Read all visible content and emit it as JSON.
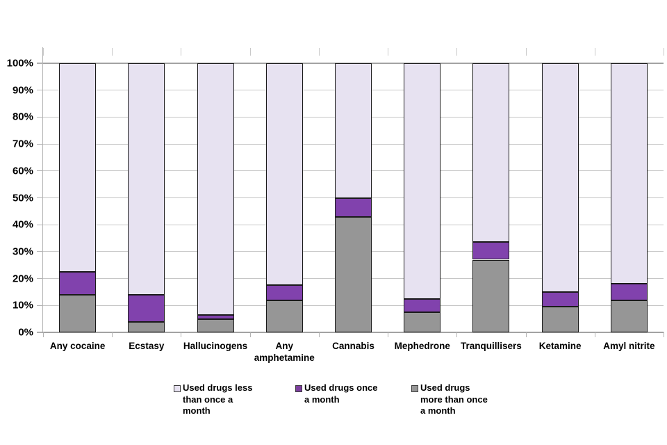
{
  "chart_data": {
    "type": "bar",
    "subtype": "stacked-percent-column",
    "title": "",
    "xlabel": "",
    "ylabel": "",
    "ylim": [
      0,
      100
    ],
    "grid": true,
    "legend_position": "bottom",
    "ytick_labels": [
      "0%",
      "10%",
      "20%",
      "30%",
      "40%",
      "50%",
      "60%",
      "70%",
      "80%",
      "90%",
      "100%"
    ],
    "categories": [
      "Any cocaine",
      "Ecstasy",
      "Hallucinogens",
      "Any amphetamine",
      "Cannabis",
      "Mephedrone",
      "Tranquillisers",
      "Ketamine",
      "Amyl nitrite"
    ],
    "series": [
      {
        "name": "Used drugs more than once a month",
        "color": "#969696",
        "values": [
          14,
          4,
          5,
          12,
          43,
          7.5,
          27,
          9.5,
          12
        ]
      },
      {
        "name": "Used drugs once a month",
        "color": "#8142ad",
        "values": [
          8.5,
          10,
          1.5,
          5.5,
          7,
          5,
          6.5,
          5.5,
          6
        ]
      },
      {
        "name": "Used drugs less than once a month",
        "color": "#e7e2f1",
        "values": [
          77.5,
          86,
          93.5,
          82.5,
          50,
          87.5,
          66.5,
          85,
          82
        ]
      }
    ],
    "legend": [
      {
        "lines": [
          "Used drugs less",
          "than once a",
          "month"
        ],
        "color": "#e7e2f1"
      },
      {
        "lines": [
          "Used drugs once",
          "a month"
        ],
        "color": "#7d3f9e"
      },
      {
        "lines": [
          "Used drugs",
          "more than once",
          "a month"
        ],
        "color": "#969696"
      }
    ]
  },
  "colors": {
    "segment_border": "#1a1a1a",
    "grid_minor": "#c6c6c6",
    "grid_major": "#a3a3a3",
    "background": "#ffffff",
    "text": "#000000"
  }
}
